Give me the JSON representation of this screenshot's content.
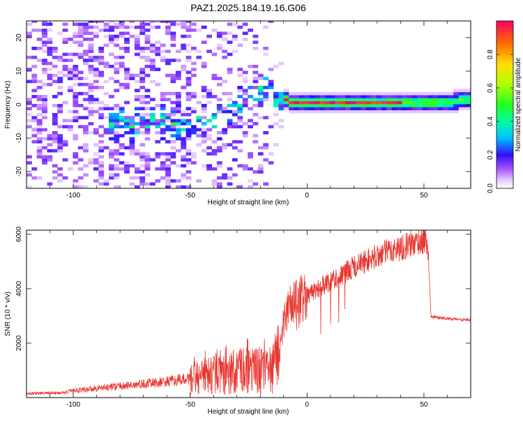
{
  "title": "PAZ1.2025.184.19.16.G06",
  "chart_data": [
    {
      "type": "heatmap",
      "xlabel": "Height of straight line (km)",
      "ylabel": "Frequency (Hz)",
      "xlim": [
        -120,
        70
      ],
      "ylim": [
        -25,
        25
      ],
      "xticks": [
        -100,
        -50,
        0,
        50
      ],
      "yticks": [
        -20,
        -10,
        0,
        10,
        20
      ],
      "colorbar": {
        "label": "Normalized spectral amplitude",
        "range": [
          0,
          1
        ],
        "ticks": [
          0.0,
          0.2,
          0.4,
          0.6,
          0.8
        ]
      },
      "ridge": {
        "x": [
          -15,
          -10,
          -5,
          0,
          10,
          20,
          30,
          40,
          50,
          60,
          70
        ],
        "freq": [
          1.5,
          1.3,
          0.8,
          0.5,
          0.7,
          0.6,
          0.6,
          0.6,
          0.7,
          1.0,
          1.3
        ]
      },
      "grid": false
    },
    {
      "type": "line",
      "xlabel": "Height of straight line (km)",
      "ylabel": "SNR (10 * v/v)",
      "xlim": [
        -120,
        70
      ],
      "ylim": [
        0,
        6150
      ],
      "xticks": [
        -100,
        -50,
        0,
        50
      ],
      "yticks": [
        2000,
        4000,
        6000
      ],
      "color": "#e8352f",
      "series_trend": {
        "x": [
          -120,
          -105,
          -100,
          -90,
          -80,
          -70,
          -60,
          -50,
          -40,
          -30,
          -20,
          -15,
          -12,
          -10,
          -8,
          -5,
          0,
          5,
          10,
          15,
          20,
          25,
          30,
          35,
          40,
          45,
          50,
          51,
          52,
          53,
          55,
          60,
          65,
          70
        ],
        "y": [
          150,
          170,
          250,
          350,
          420,
          500,
          580,
          700,
          800,
          950,
          1000,
          900,
          1500,
          2800,
          3300,
          3500,
          3800,
          4000,
          4300,
          4500,
          4800,
          5000,
          5200,
          5400,
          5500,
          5650,
          5800,
          5700,
          5000,
          3000,
          2950,
          2900,
          2880,
          2850
        ]
      },
      "grid": false
    }
  ]
}
